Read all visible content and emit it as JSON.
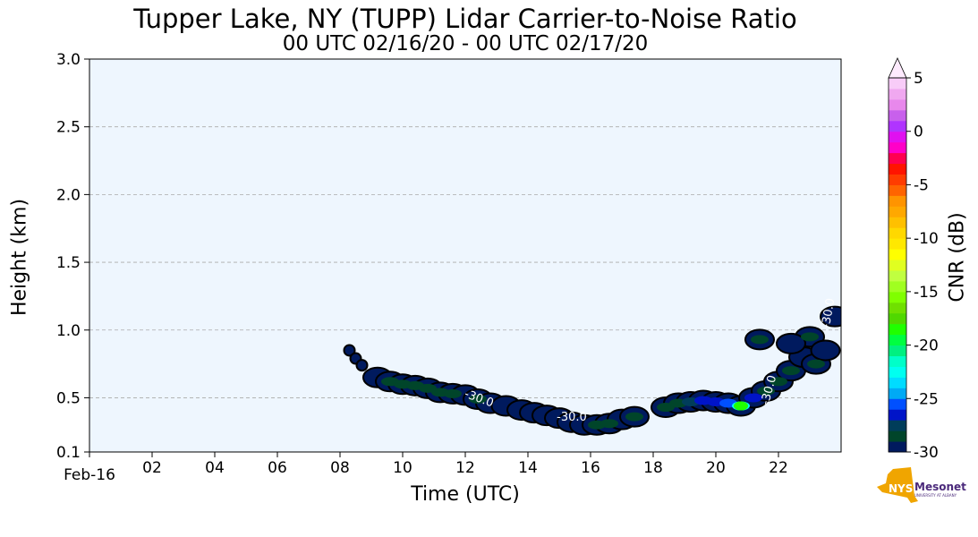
{
  "chart_data": {
    "type": "heatmap",
    "title": "Tupper Lake, NY (TUPP) Lidar Carrier-to-Noise Ratio",
    "subtitle": "00 UTC 02/16/20 - 00 UTC 02/17/20",
    "xlabel": "Time (UTC)",
    "ylabel": "Height (km)",
    "xlim": [
      0,
      24
    ],
    "ylim": [
      0.1,
      3.0
    ],
    "xticks": [
      0,
      2,
      4,
      6,
      8,
      10,
      12,
      14,
      16,
      18,
      20,
      22
    ],
    "xtick_labels": [
      "Feb-16",
      "02",
      "04",
      "06",
      "08",
      "10",
      "12",
      "14",
      "16",
      "18",
      "20",
      "22"
    ],
    "yticks": [
      0.1,
      0.5,
      1.0,
      1.5,
      2.0,
      2.5,
      3.0
    ],
    "ytick_labels": [
      "0.1",
      "0.5",
      "1.0",
      "1.5",
      "2.0",
      "2.5",
      "3.0"
    ],
    "grid": "horizontal dashed",
    "background": "#eef6fe",
    "colorbar": {
      "label": "CNR (dB)",
      "range": [
        -30,
        5
      ],
      "ticks": [
        5,
        0,
        -5,
        -10,
        -15,
        -20,
        -25,
        -30
      ],
      "tick_labels": [
        "5",
        "0",
        "-5",
        "-10",
        "-15",
        "-20",
        "-25",
        "-30"
      ],
      "colors_bottom_to_top": [
        "#001a5e",
        "#00452a",
        "#003d5a",
        "#0014c8",
        "#0050ff",
        "#00aaf5",
        "#00dcff",
        "#00fff0",
        "#00ffc8",
        "#00f080",
        "#00ff40",
        "#20ff00",
        "#50d800",
        "#70e000",
        "#80ff00",
        "#a0ff20",
        "#c0ff40",
        "#e0ff20",
        "#ffff00",
        "#ffe800",
        "#ffd800",
        "#ffc000",
        "#ffa800",
        "#ff9400",
        "#ff6400",
        "#ff3c00",
        "#ff1400",
        "#ff0050",
        "#ff00c8",
        "#e010f0",
        "#b034ff",
        "#c860ec",
        "#e888ec",
        "#f0a8f0",
        "#f8ccf8",
        "#fdeafd"
      ]
    },
    "cells": [
      [
        8.3,
        0.85,
        -30
      ],
      [
        8.5,
        0.79,
        -30
      ],
      [
        8.7,
        0.74,
        -30
      ],
      [
        9.2,
        0.65,
        -30
      ],
      [
        9.6,
        0.62,
        -29
      ],
      [
        10.0,
        0.6,
        -29
      ],
      [
        10.4,
        0.59,
        -29
      ],
      [
        10.8,
        0.57,
        -29
      ],
      [
        11.2,
        0.54,
        -29
      ],
      [
        11.6,
        0.53,
        -29
      ],
      [
        12.0,
        0.52,
        -30
      ],
      [
        12.4,
        0.49,
        -29
      ],
      [
        12.8,
        0.46,
        -30
      ],
      [
        13.3,
        0.44,
        -30
      ],
      [
        13.8,
        0.41,
        -30
      ],
      [
        14.2,
        0.39,
        -30
      ],
      [
        14.6,
        0.37,
        -30
      ],
      [
        15.0,
        0.35,
        -30
      ],
      [
        15.4,
        0.32,
        -30
      ],
      [
        15.8,
        0.3,
        -30
      ],
      [
        16.2,
        0.3,
        -29
      ],
      [
        16.6,
        0.31,
        -29
      ],
      [
        17.0,
        0.34,
        -30
      ],
      [
        17.4,
        0.36,
        -29
      ],
      [
        18.4,
        0.43,
        -29
      ],
      [
        18.8,
        0.46,
        -29
      ],
      [
        19.2,
        0.47,
        -28
      ],
      [
        19.6,
        0.48,
        -27
      ],
      [
        20.0,
        0.47,
        -27
      ],
      [
        20.4,
        0.46,
        -26
      ],
      [
        20.8,
        0.44,
        -23
      ],
      [
        21.2,
        0.5,
        -27
      ],
      [
        21.6,
        0.55,
        -29
      ],
      [
        22.0,
        0.62,
        -29
      ],
      [
        22.4,
        0.7,
        -29
      ],
      [
        22.8,
        0.8,
        -30
      ],
      [
        23.0,
        0.95,
        -29
      ],
      [
        23.2,
        0.75,
        -29
      ],
      [
        23.5,
        0.85,
        -30
      ],
      [
        23.8,
        1.1,
        -30
      ],
      [
        21.4,
        0.93,
        -29
      ],
      [
        22.4,
        0.9,
        -30
      ]
    ],
    "contour_labels": [
      {
        "text": "-30.0",
        "t": 12.4,
        "h": 0.47,
        "angle": 20
      },
      {
        "text": "-30.0",
        "t": 15.4,
        "h": 0.33,
        "angle": 0
      },
      {
        "text": "-30.0",
        "t": 21.8,
        "h": 0.55,
        "angle": -75
      },
      {
        "text": "-30.0",
        "t": 23.7,
        "h": 1.12,
        "angle": -80
      }
    ]
  },
  "logo": {
    "text": "NYS Mesonet",
    "sub": "UNIVERSITY AT ALBANY",
    "colors": {
      "state": "#f0a500",
      "text": "#4b2a7b"
    }
  }
}
